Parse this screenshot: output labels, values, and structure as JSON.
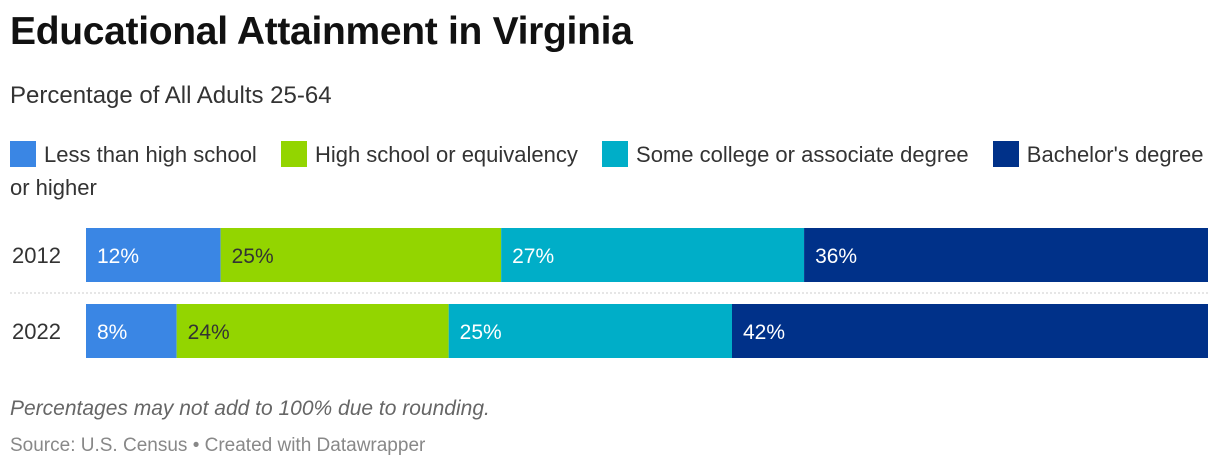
{
  "header": {
    "title": "Educational Attainment in Virginia",
    "subtitle": "Percentage of All Adults 25-64"
  },
  "legend": {
    "items": [
      {
        "label": "Less than high school",
        "color": "#3a86e4"
      },
      {
        "label": "High school or equivalency",
        "color": "#93d500"
      },
      {
        "label": "Some college or associate degree",
        "color": "#00aec8"
      },
      {
        "label": "Bachelor's degree or higher",
        "color": "#003189"
      }
    ]
  },
  "chart_data": {
    "type": "bar",
    "orientation": "horizontal",
    "stacked": true,
    "categories": [
      "2012",
      "2022"
    ],
    "series": [
      {
        "name": "Less than high school",
        "values": [
          12,
          8
        ],
        "labels": [
          "12%",
          "8%"
        ],
        "color": "#3a86e4",
        "label_color": "#ffffff"
      },
      {
        "name": "High school or equivalency",
        "values": [
          25,
          24
        ],
        "labels": [
          "25%",
          "24%"
        ],
        "color": "#93d500",
        "label_color": "#333333"
      },
      {
        "name": "Some college or associate degree",
        "values": [
          27,
          25
        ],
        "labels": [
          "27%",
          "25%"
        ],
        "color": "#00aec8",
        "label_color": "#ffffff"
      },
      {
        "name": "Bachelor's degree or higher",
        "values": [
          36,
          42
        ],
        "labels": [
          "36%",
          "42%"
        ],
        "color": "#003189",
        "label_color": "#ffffff"
      }
    ],
    "grid": false,
    "legend_position": "top"
  },
  "footer": {
    "note": "Percentages may not add to 100% due to rounding.",
    "source": "Source: U.S. Census • Created with Datawrapper"
  }
}
